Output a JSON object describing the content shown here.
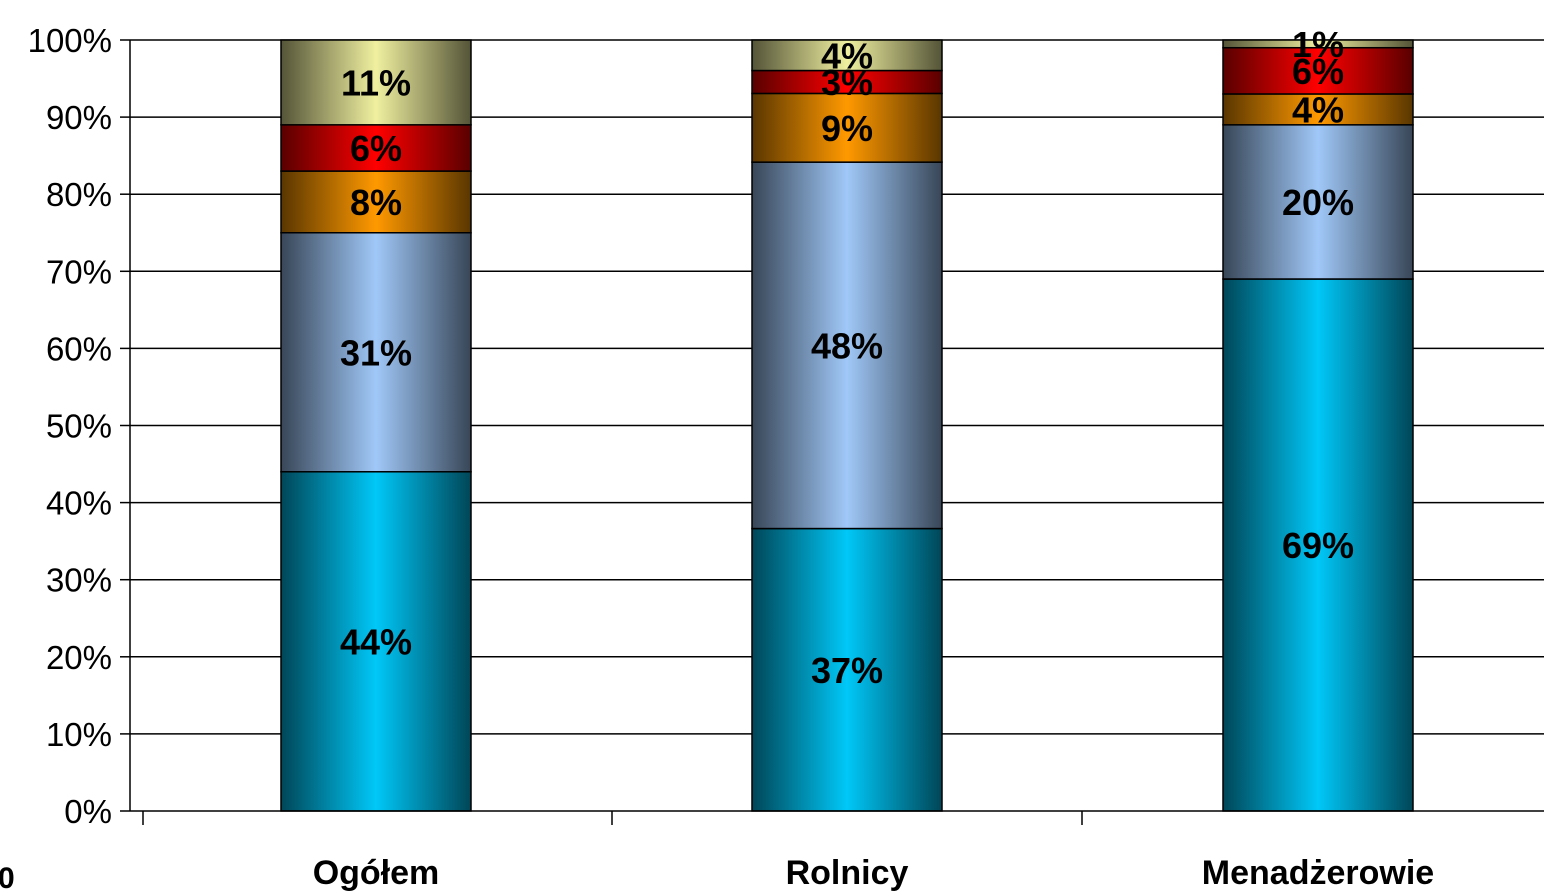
{
  "chart_data": {
    "type": "bar",
    "stacked": true,
    "percent": true,
    "categories": [
      "Ogółem",
      "Rolnicy",
      "Menadżerowie"
    ],
    "series": [
      {
        "values": [
          44,
          37,
          69
        ],
        "labels": [
          "44%",
          "37%",
          "69%"
        ],
        "color": "#00c8f8"
      },
      {
        "values": [
          31,
          48,
          20
        ],
        "labels": [
          "31%",
          "48%",
          "20%"
        ],
        "color": "#a0c8f8"
      },
      {
        "values": [
          8,
          9,
          4
        ],
        "labels": [
          "8%",
          "9%",
          "4%"
        ],
        "color": "#ff9900"
      },
      {
        "values": [
          6,
          3,
          6
        ],
        "labels": [
          "6%",
          "3%",
          "6%"
        ],
        "color": "#ff0000"
      },
      {
        "values": [
          11,
          4,
          1
        ],
        "labels": [
          "11%",
          "4%",
          "1%"
        ],
        "color": "#f0f0a0"
      }
    ],
    "ylim": [
      0,
      100
    ],
    "yticks": [
      "0%",
      "10%",
      "20%",
      "30%",
      "40%",
      "50%",
      "60%",
      "70%",
      "80%",
      "90%",
      "100%"
    ],
    "grid": true,
    "legend": "none",
    "stray_text": "0"
  }
}
